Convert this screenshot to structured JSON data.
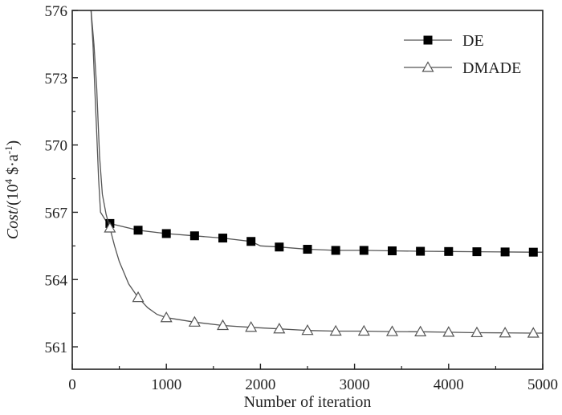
{
  "chart_data": {
    "type": "line",
    "title": "",
    "xlabel": "Number of iteration",
    "ylabel": {
      "italic": "Cost",
      "unit_prefix": "/(10",
      "unit_exp1": "4",
      "unit_mid": " $·a",
      "unit_exp2": "-1",
      "unit_suffix": ")"
    },
    "xlim": [
      0,
      5000
    ],
    "ylim": [
      560,
      576
    ],
    "xticks": [
      0,
      1000,
      2000,
      3000,
      4000,
      5000
    ],
    "yticks": [
      561,
      564,
      567,
      570,
      573,
      576
    ],
    "xtick_labels": [
      "0",
      "1000",
      "2000",
      "3000",
      "4000",
      "5000"
    ],
    "ytick_labels": [
      "561",
      "564",
      "567",
      "570",
      "573",
      "576"
    ],
    "legend_position": "top-right",
    "series": [
      {
        "name": "DE",
        "marker": "square",
        "color": "#000000",
        "line_color": "#555555",
        "line_x": [
          200,
          220,
          240,
          260,
          280,
          300,
          330,
          360,
          400,
          500,
          700,
          1000,
          1300,
          1600,
          1900,
          2000,
          2200,
          2500,
          2800,
          3100,
          3400,
          3700,
          4000,
          4300,
          4600,
          4900,
          5000
        ],
        "line_y": [
          576,
          574.5,
          572.5,
          570.5,
          568.5,
          567.0,
          566.8,
          566.6,
          566.5,
          566.4,
          566.2,
          566.05,
          565.95,
          565.85,
          565.7,
          565.5,
          565.45,
          565.35,
          565.3,
          565.3,
          565.28,
          565.26,
          565.25,
          565.24,
          565.23,
          565.22,
          565.22
        ],
        "marker_x": [
          400,
          700,
          1000,
          1300,
          1600,
          1900,
          2200,
          2500,
          2800,
          3100,
          3400,
          3700,
          4000,
          4300,
          4600,
          4900
        ],
        "marker_y": [
          566.5,
          566.2,
          566.05,
          565.95,
          565.85,
          565.7,
          565.45,
          565.35,
          565.3,
          565.3,
          565.28,
          565.26,
          565.25,
          565.24,
          565.23,
          565.22
        ]
      },
      {
        "name": "DMADE",
        "marker": "triangle",
        "color": "#555555",
        "line_color": "#555555",
        "line_x": [
          200,
          230,
          260,
          290,
          320,
          360,
          400,
          450,
          500,
          550,
          600,
          700,
          800,
          900,
          1000,
          1300,
          1600,
          1900,
          2200,
          2500,
          2800,
          3100,
          3400,
          3700,
          4000,
          4300,
          4600,
          4900,
          5000
        ],
        "line_y": [
          576,
          574.5,
          572.5,
          569.5,
          567.8,
          566.9,
          566.3,
          565.5,
          564.8,
          564.3,
          563.8,
          563.2,
          562.75,
          562.45,
          562.3,
          562.1,
          561.95,
          561.87,
          561.8,
          561.73,
          561.7,
          561.7,
          561.68,
          561.67,
          561.65,
          561.63,
          561.62,
          561.61,
          561.61
        ],
        "marker_x": [
          400,
          700,
          1000,
          1300,
          1600,
          1900,
          2200,
          2500,
          2800,
          3100,
          3400,
          3700,
          4000,
          4300,
          4600,
          4900
        ],
        "marker_y": [
          566.3,
          563.2,
          562.3,
          562.1,
          561.95,
          561.87,
          561.8,
          561.73,
          561.7,
          561.7,
          561.68,
          561.67,
          561.65,
          561.63,
          561.62,
          561.61
        ]
      }
    ]
  }
}
